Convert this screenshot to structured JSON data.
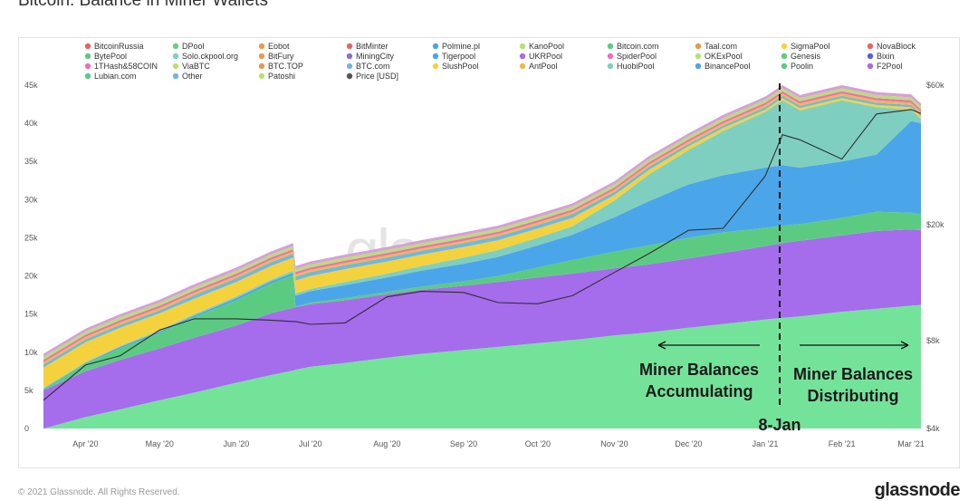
{
  "page": {
    "title": "Bitcoin: Balance in Miner Wallets",
    "copyright": "© 2021 Glassnode. All Rights Reserved.",
    "logo": "glassnode",
    "watermark": "glassnode"
  },
  "chart_data": {
    "type": "area",
    "stacked": true,
    "title": "Bitcoin: Balance in Miner Wallets",
    "x": [
      "2020-03-15",
      "2020-04-01",
      "2020-04-15",
      "2020-05-01",
      "2020-05-15",
      "2020-06-01",
      "2020-06-15",
      "2020-06-24",
      "2020-06-25",
      "2020-07-01",
      "2020-07-15",
      "2020-08-01",
      "2020-08-15",
      "2020-09-01",
      "2020-09-15",
      "2020-10-01",
      "2020-10-15",
      "2020-11-01",
      "2020-11-15",
      "2020-12-01",
      "2020-12-15",
      "2021-01-01",
      "2021-01-08",
      "2021-01-15",
      "2021-02-01",
      "2021-02-15",
      "2021-03-01",
      "2021-03-05"
    ],
    "x_ticks": [
      "Apr '20",
      "May '20",
      "Jun '20",
      "Jul '20",
      "Aug '20",
      "Sep '20",
      "Oct '20",
      "Nov '20",
      "Dec '20",
      "Jan '21",
      "Feb '21",
      "Mar '21"
    ],
    "ylim": [
      0,
      45000
    ],
    "y_ticks": [
      "0",
      "5k",
      "10k",
      "15k",
      "20k",
      "25k",
      "30k",
      "35k",
      "40k",
      "45k"
    ],
    "y2_ticks": [
      "$4k",
      "$8k",
      "$20k",
      "$60k"
    ],
    "y2_scale": "log",
    "legend_position": "top",
    "legend": [
      "BitcoinRussia",
      "DPool",
      "Eobot",
      "BitMinter",
      "Polmine.pl",
      "KanoPool",
      "Bitcoin.com",
      "Taal.com",
      "SigmaPool",
      "NovaBlock",
      "BytePool",
      "Solo.ckpool.org",
      "BitFury",
      "MiningCity",
      "Tigerpool",
      "UKRPool",
      "SpiderPool",
      "OKExPool",
      "Genesis",
      "Bixin",
      "1THash&58COIN",
      "ViaBTC",
      "BTC.TOP",
      "BTC.com",
      "SlushPool",
      "AntPool",
      "HuobiPool",
      "BinancePool",
      "Poolin",
      "F2Pool",
      "Lubian.com",
      "Other",
      "Patoshi",
      "Price [USD]"
    ],
    "series": [
      {
        "name": "Patoshi",
        "color": "#74e39a",
        "values": [
          0,
          1500,
          2500,
          3700,
          4700,
          6000,
          7000,
          7600,
          7700,
          8100,
          8600,
          9300,
          9800,
          10300,
          10700,
          11200,
          11600,
          12200,
          12600,
          13200,
          13700,
          14300,
          14500,
          14700,
          15300,
          15700,
          16100,
          16200
        ]
      },
      {
        "name": "F2Pool",
        "color": "#a56cec",
        "values": [
          5000,
          6000,
          6500,
          6800,
          7200,
          7500,
          8100,
          8200,
          8200,
          8200,
          8200,
          8300,
          8400,
          8400,
          8500,
          8600,
          8700,
          8800,
          8900,
          9100,
          9300,
          9600,
          9800,
          9900,
          10000,
          10200,
          10000,
          9800
        ]
      },
      {
        "name": "Poolin",
        "color": "#5ccb82",
        "values": [
          100,
          1000,
          1500,
          2000,
          2700,
          3300,
          3900,
          4300,
          100,
          200,
          300,
          300,
          400,
          600,
          800,
          1300,
          1800,
          2200,
          2500,
          2700,
          2700,
          2400,
          2300,
          2200,
          2300,
          2500,
          2200,
          2100
        ]
      },
      {
        "name": "BinancePool",
        "color": "#4aa6e8",
        "values": [
          100,
          100,
          200,
          200,
          200,
          300,
          300,
          300,
          1400,
          1500,
          1700,
          1900,
          2100,
          2300,
          2500,
          2900,
          3300,
          4500,
          5800,
          7000,
          7500,
          7900,
          7900,
          7400,
          7400,
          7500,
          12000,
          11900
        ]
      },
      {
        "name": "HuobiPool",
        "color": "#7ecfc0",
        "values": [
          100,
          100,
          100,
          200,
          200,
          200,
          200,
          300,
          300,
          300,
          400,
          500,
          600,
          800,
          900,
          1000,
          1100,
          2200,
          3500,
          4500,
          5800,
          7300,
          8500,
          7500,
          8000,
          6200,
          1500,
          600
        ]
      },
      {
        "name": "SlushPool",
        "color": "#f4d23e",
        "values": [
          2700,
          2600,
          2400,
          2200,
          2000,
          1900,
          1800,
          1700,
          1700,
          1700,
          1700,
          1600,
          1500,
          1400,
          1300,
          1200,
          1100,
          700,
          600,
          500,
          400,
          300,
          300,
          300,
          300,
          300,
          300,
          300
        ]
      },
      {
        "name": "BTC.com",
        "color": "#6fb7e6",
        "values": [
          400,
          400,
          400,
          400,
          500,
          500,
          500,
          500,
          500,
          500,
          500,
          500,
          500,
          500,
          500,
          500,
          500,
          400,
          400,
          300,
          300,
          300,
          300,
          300,
          300,
          300,
          300,
          300
        ]
      },
      {
        "name": "AntPool",
        "color": "#f2b84a",
        "values": [
          300,
          300,
          300,
          300,
          300,
          300,
          300,
          300,
          300,
          300,
          300,
          300,
          300,
          300,
          300,
          300,
          300,
          300,
          300,
          300,
          300,
          300,
          300,
          300,
          300,
          300,
          300,
          300
        ]
      },
      {
        "name": "1THash&58COIN",
        "color": "#ee6fb8",
        "values": [
          300,
          300,
          300,
          300,
          300,
          300,
          300,
          300,
          300,
          300,
          300,
          300,
          300,
          300,
          300,
          300,
          300,
          300,
          300,
          300,
          300,
          300,
          300,
          300,
          300,
          300,
          300,
          300
        ]
      },
      {
        "name": "ViaBTC",
        "color": "#b6e076",
        "values": [
          400,
          400,
          400,
          400,
          400,
          400,
          400,
          400,
          400,
          400,
          400,
          400,
          400,
          400,
          400,
          400,
          400,
          400,
          400,
          400,
          400,
          400,
          400,
          400,
          400,
          400,
          400,
          400
        ]
      },
      {
        "name": "Other",
        "color": "#d6a0d8",
        "values": [
          400,
          400,
          400,
          400,
          400,
          400,
          400,
          400,
          400,
          400,
          400,
          400,
          400,
          400,
          400,
          400,
          400,
          400,
          400,
          400,
          400,
          400,
          400,
          400,
          400,
          400,
          400,
          400
        ]
      }
    ],
    "price_line": {
      "name": "Price [USD]",
      "color": "#2f2f2f",
      "values": [
        5000,
        6600,
        7100,
        8700,
        9500,
        9500,
        9400,
        9300,
        9300,
        9100,
        9200,
        11300,
        11800,
        11700,
        10800,
        10700,
        11400,
        13700,
        15900,
        19100,
        19400,
        29300,
        40600,
        39000,
        33500,
        47800,
        49500,
        48000
      ]
    },
    "annotations": {
      "marker_label": "8-Jan",
      "left_label_line1": "Miner Balances",
      "left_label_line2": "Accumulating",
      "right_label_line1": "Miner Balances",
      "right_label_line2": "Distributing"
    }
  }
}
